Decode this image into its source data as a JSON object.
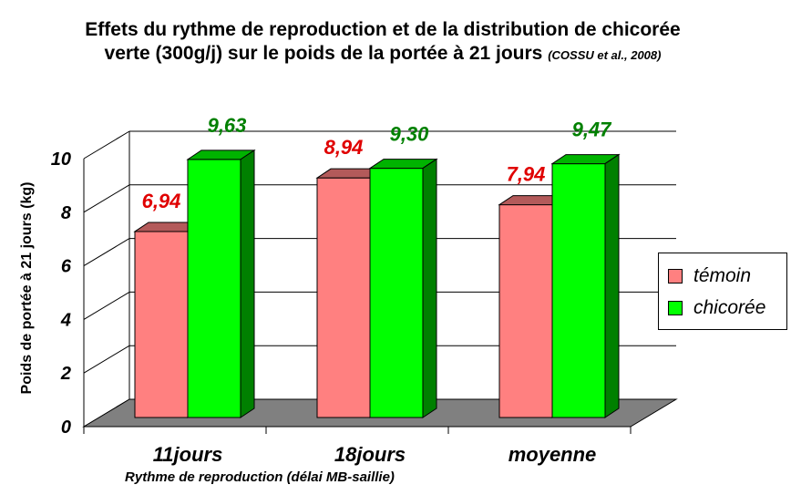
{
  "title": {
    "line1": "Effets du rythme de reproduction et de la distribution de chicorée",
    "line2": "verte (300g/j) sur le poids de la portée à 21 jours",
    "citation": "(COSSU et al., 2008)"
  },
  "chart_data": {
    "type": "bar",
    "categories": [
      "11jours",
      "18jours",
      "moyenne"
    ],
    "series": [
      {
        "name": "témoin",
        "values": [
          6.94,
          8.94,
          7.94
        ],
        "labels": [
          "6,94",
          "8,94",
          "7,94"
        ],
        "color": "#ff8080",
        "label_color": "#e00000"
      },
      {
        "name": "chicorée",
        "values": [
          9.63,
          9.3,
          9.47
        ],
        "labels": [
          "9,63",
          "9,30",
          "9,47"
        ],
        "color": "#00ff00",
        "label_color": "#008000"
      }
    ],
    "xlabel": "Rythme de reproduction (délai MB-saillie)",
    "ylabel": "Poids de portée à 21 jours (kg)",
    "ylim": [
      0,
      10
    ],
    "yticks": [
      "0",
      "2",
      "4",
      "6",
      "8",
      "10"
    ],
    "grid": true,
    "legend_position": "right"
  }
}
